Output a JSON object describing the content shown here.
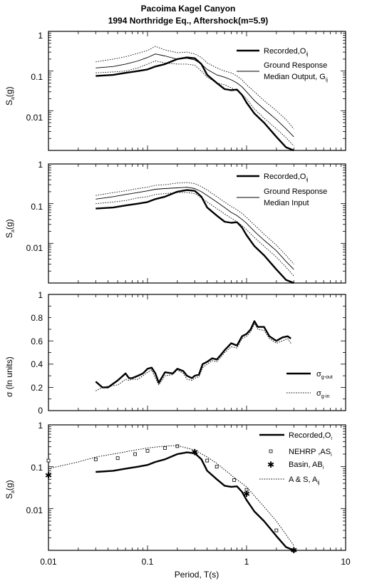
{
  "figure": {
    "title_line1": "Pacoima Kagel Canyon",
    "title_line2": "1994 Northridge Eq., Aftershock(m=5.9)",
    "xlabel": "Period, T(s)",
    "x_ticks": [
      "0.01",
      "0.1",
      "1",
      "10"
    ]
  },
  "chart_data": [
    {
      "type": "line",
      "ylabel": "S",
      "ylabel_sub": "a",
      "ylabel_suffix": "(g)",
      "y_scale": "log",
      "x_scale": "log",
      "xlim": [
        0.01,
        10
      ],
      "ylim": [
        0.001,
        1
      ],
      "y_ticks": [
        "1",
        "0.1",
        "0.01"
      ],
      "legend": [
        {
          "text": "Recorded,O",
          "sub": "ij"
        },
        {
          "text": "Ground Response",
          "sub": ""
        },
        {
          "text": "Median Output, G",
          "sub": "ij"
        }
      ],
      "series": [
        {
          "x": [
            0.03,
            0.045,
            0.06,
            0.08,
            0.1,
            0.12,
            0.15,
            0.2,
            0.25,
            0.3,
            0.35,
            0.4,
            0.5,
            0.6,
            0.7,
            0.8,
            0.9,
            1.0,
            1.2,
            1.5,
            2.0,
            2.5,
            3.0
          ],
          "y": [
            0.075,
            0.08,
            0.09,
            0.1,
            0.11,
            0.13,
            0.15,
            0.2,
            0.22,
            0.21,
            0.15,
            0.08,
            0.05,
            0.035,
            0.033,
            0.034,
            0.025,
            0.016,
            0.0085,
            0.005,
            0.0022,
            0.0012,
            0.001
          ]
        },
        {
          "x": [
            0.03,
            0.045,
            0.06,
            0.08,
            0.1,
            0.12,
            0.15,
            0.2,
            0.25,
            0.3,
            0.35,
            0.4,
            0.5,
            0.6,
            0.7,
            0.8,
            0.9,
            1.0,
            1.2,
            1.5,
            2.0,
            2.5,
            3.0
          ],
          "y": [
            0.12,
            0.13,
            0.15,
            0.18,
            0.22,
            0.27,
            0.24,
            0.2,
            0.21,
            0.19,
            0.15,
            0.11,
            0.08,
            0.07,
            0.06,
            0.05,
            0.04,
            0.03,
            0.018,
            0.011,
            0.006,
            0.0035,
            0.0022
          ]
        },
        {
          "x": [
            0.03,
            0.045,
            0.06,
            0.08,
            0.1,
            0.12,
            0.15,
            0.2,
            0.25,
            0.3,
            0.35,
            0.4,
            0.5,
            0.6,
            0.7,
            0.8,
            0.9,
            1.0,
            1.2,
            1.5,
            2.0,
            2.5,
            3.0
          ],
          "y": [
            0.17,
            0.2,
            0.23,
            0.28,
            0.33,
            0.42,
            0.34,
            0.29,
            0.3,
            0.27,
            0.22,
            0.16,
            0.12,
            0.1,
            0.09,
            0.075,
            0.06,
            0.045,
            0.03,
            0.018,
            0.01,
            0.006,
            0.0035
          ]
        },
        {
          "x": [
            0.03,
            0.045,
            0.06,
            0.08,
            0.1,
            0.12,
            0.15,
            0.2,
            0.25,
            0.3,
            0.35,
            0.4,
            0.5,
            0.6,
            0.7,
            0.8,
            0.9,
            1.0,
            1.2,
            1.5,
            2.0,
            2.5,
            3.0
          ],
          "y": [
            0.09,
            0.095,
            0.1,
            0.12,
            0.15,
            0.18,
            0.16,
            0.15,
            0.15,
            0.14,
            0.1,
            0.07,
            0.05,
            0.045,
            0.038,
            0.032,
            0.026,
            0.02,
            0.011,
            0.0065,
            0.0035,
            0.0021,
            0.0013
          ]
        }
      ]
    },
    {
      "type": "line",
      "ylabel": "S",
      "ylabel_sub": "a",
      "ylabel_suffix": "(g)",
      "y_scale": "log",
      "x_scale": "log",
      "xlim": [
        0.01,
        10
      ],
      "ylim": [
        0.001,
        1
      ],
      "y_ticks": [
        "1",
        "0.1",
        "0.01"
      ],
      "legend": [
        {
          "text": "Recorded,O",
          "sub": "ij"
        },
        {
          "text": "Ground Response",
          "sub": ""
        },
        {
          "text": "Median Input",
          "sub": ""
        }
      ],
      "series": [
        {
          "x": [
            0.03,
            0.045,
            0.06,
            0.08,
            0.1,
            0.12,
            0.15,
            0.2,
            0.25,
            0.3,
            0.35,
            0.4,
            0.5,
            0.6,
            0.7,
            0.8,
            0.9,
            1.0,
            1.2,
            1.5,
            2.0,
            2.5,
            3.0
          ],
          "y": [
            0.075,
            0.08,
            0.09,
            0.1,
            0.11,
            0.13,
            0.15,
            0.2,
            0.22,
            0.21,
            0.15,
            0.08,
            0.05,
            0.035,
            0.033,
            0.034,
            0.025,
            0.016,
            0.0085,
            0.005,
            0.0022,
            0.0012,
            0.001
          ]
        },
        {
          "x": [
            0.03,
            0.045,
            0.06,
            0.08,
            0.1,
            0.12,
            0.15,
            0.2,
            0.25,
            0.3,
            0.35,
            0.4,
            0.5,
            0.6,
            0.7,
            0.8,
            0.9,
            1.0,
            1.2,
            1.5,
            2.0,
            2.5,
            3.0
          ],
          "y": [
            0.13,
            0.15,
            0.17,
            0.19,
            0.21,
            0.23,
            0.24,
            0.25,
            0.26,
            0.24,
            0.2,
            0.16,
            0.11,
            0.08,
            0.06,
            0.05,
            0.04,
            0.032,
            0.02,
            0.012,
            0.0065,
            0.0035,
            0.0022
          ]
        },
        {
          "x": [
            0.03,
            0.045,
            0.06,
            0.08,
            0.1,
            0.12,
            0.15,
            0.2,
            0.25,
            0.3,
            0.35,
            0.4,
            0.5,
            0.6,
            0.7,
            0.8,
            0.9,
            1.0,
            1.2,
            1.5,
            2.0,
            2.5,
            3.0
          ],
          "y": [
            0.16,
            0.19,
            0.21,
            0.24,
            0.26,
            0.29,
            0.3,
            0.33,
            0.34,
            0.32,
            0.27,
            0.22,
            0.15,
            0.11,
            0.085,
            0.07,
            0.057,
            0.045,
            0.029,
            0.017,
            0.009,
            0.005,
            0.003
          ]
        },
        {
          "x": [
            0.03,
            0.045,
            0.06,
            0.08,
            0.1,
            0.12,
            0.15,
            0.2,
            0.25,
            0.3,
            0.35,
            0.4,
            0.5,
            0.6,
            0.7,
            0.8,
            0.9,
            1.0,
            1.2,
            1.5,
            2.0,
            2.5,
            3.0
          ],
          "y": [
            0.1,
            0.11,
            0.12,
            0.14,
            0.15,
            0.17,
            0.18,
            0.19,
            0.19,
            0.18,
            0.14,
            0.11,
            0.075,
            0.055,
            0.043,
            0.035,
            0.028,
            0.022,
            0.014,
            0.0085,
            0.0045,
            0.0025,
            0.0015
          ]
        }
      ]
    },
    {
      "type": "line",
      "ylabel": "σ (ln units)",
      "y_scale": "linear",
      "x_scale": "log",
      "xlim": [
        0.01,
        10
      ],
      "ylim": [
        0,
        1
      ],
      "y_ticks": [
        "1",
        "0.8",
        "0.6",
        "0.4",
        "0.2",
        "0"
      ],
      "legend": [
        {
          "text": "σ",
          "sub": "g-out"
        },
        {
          "text": "σ",
          "sub": "g-in"
        }
      ],
      "series": [
        {
          "x": [
            0.03,
            0.035,
            0.04,
            0.05,
            0.06,
            0.065,
            0.07,
            0.08,
            0.09,
            0.1,
            0.11,
            0.12,
            0.13,
            0.15,
            0.18,
            0.2,
            0.23,
            0.25,
            0.28,
            0.3,
            0.33,
            0.36,
            0.4,
            0.45,
            0.5,
            0.55,
            0.6,
            0.7,
            0.8,
            0.9,
            1.0,
            1.1,
            1.2,
            1.3,
            1.5,
            1.7,
            2.0,
            2.3,
            2.6,
            2.8
          ],
          "y": [
            0.25,
            0.2,
            0.2,
            0.26,
            0.32,
            0.28,
            0.28,
            0.3,
            0.32,
            0.36,
            0.37,
            0.32,
            0.24,
            0.33,
            0.32,
            0.36,
            0.34,
            0.3,
            0.28,
            0.3,
            0.31,
            0.4,
            0.42,
            0.45,
            0.44,
            0.48,
            0.52,
            0.58,
            0.56,
            0.64,
            0.66,
            0.7,
            0.77,
            0.72,
            0.72,
            0.64,
            0.6,
            0.63,
            0.64,
            0.62
          ]
        },
        {
          "x": [
            0.03,
            0.035,
            0.04,
            0.05,
            0.06,
            0.065,
            0.07,
            0.08,
            0.09,
            0.1,
            0.11,
            0.12,
            0.13,
            0.15,
            0.18,
            0.2,
            0.23,
            0.25,
            0.28,
            0.3,
            0.33,
            0.36,
            0.4,
            0.45,
            0.5,
            0.55,
            0.6,
            0.7,
            0.8,
            0.9,
            1.0,
            1.1,
            1.2,
            1.3,
            1.5,
            1.7,
            2.0,
            2.3,
            2.6,
            2.8
          ],
          "y": [
            0.17,
            0.2,
            0.21,
            0.22,
            0.27,
            0.26,
            0.27,
            0.27,
            0.3,
            0.33,
            0.35,
            0.28,
            0.22,
            0.3,
            0.31,
            0.35,
            0.32,
            0.27,
            0.26,
            0.28,
            0.29,
            0.37,
            0.4,
            0.43,
            0.42,
            0.46,
            0.5,
            0.55,
            0.54,
            0.62,
            0.64,
            0.68,
            0.75,
            0.7,
            0.69,
            0.62,
            0.58,
            0.6,
            0.62,
            0.58
          ]
        }
      ]
    },
    {
      "type": "line",
      "ylabel": "S",
      "ylabel_sub": "a",
      "ylabel_suffix": "(g)",
      "y_scale": "log",
      "x_scale": "log",
      "xlim": [
        0.01,
        10
      ],
      "ylim": [
        0.001,
        1
      ],
      "y_ticks": [
        "1",
        "0.1",
        "0.01"
      ],
      "legend": [
        {
          "text": "Recorded,O",
          "sub": "i"
        },
        {
          "text": "NEHRP ,AS",
          "sub": "i"
        },
        {
          "text": "Basin, AB",
          "sub": "i"
        },
        {
          "text": "A & S, A",
          "sub": "ij"
        }
      ],
      "series": [
        {
          "x": [
            0.03,
            0.045,
            0.06,
            0.08,
            0.1,
            0.12,
            0.15,
            0.2,
            0.25,
            0.3,
            0.35,
            0.4,
            0.5,
            0.6,
            0.7,
            0.8,
            0.9,
            1.0,
            1.2,
            1.5,
            2.0,
            2.5,
            3.0
          ],
          "y": [
            0.075,
            0.08,
            0.09,
            0.1,
            0.11,
            0.13,
            0.15,
            0.2,
            0.22,
            0.21,
            0.15,
            0.08,
            0.05,
            0.035,
            0.033,
            0.034,
            0.025,
            0.016,
            0.0085,
            0.005,
            0.0022,
            0.0012,
            0.001
          ]
        },
        {
          "x": [
            0.01,
            0.03,
            0.05,
            0.075,
            0.1,
            0.15,
            0.2,
            0.3,
            0.4,
            0.5,
            0.75,
            1.0,
            2.0,
            3.0
          ],
          "y": [
            0.14,
            0.15,
            0.16,
            0.2,
            0.24,
            0.28,
            0.31,
            0.22,
            0.14,
            0.1,
            0.048,
            0.028,
            0.003,
            0.001
          ]
        },
        {
          "x": [
            0.01,
            0.3,
            1.0,
            3.0
          ],
          "y": [
            0.062,
            0.22,
            0.022,
            0.001
          ]
        },
        {
          "x": [
            0.01,
            0.02,
            0.03,
            0.05,
            0.075,
            0.1,
            0.15,
            0.2,
            0.3,
            0.4,
            0.5,
            0.75,
            1.0,
            1.5,
            2.0,
            3.0
          ],
          "y": [
            0.09,
            0.13,
            0.17,
            0.21,
            0.25,
            0.28,
            0.31,
            0.32,
            0.25,
            0.17,
            0.12,
            0.055,
            0.033,
            0.011,
            0.005,
            0.0013
          ]
        }
      ]
    }
  ]
}
